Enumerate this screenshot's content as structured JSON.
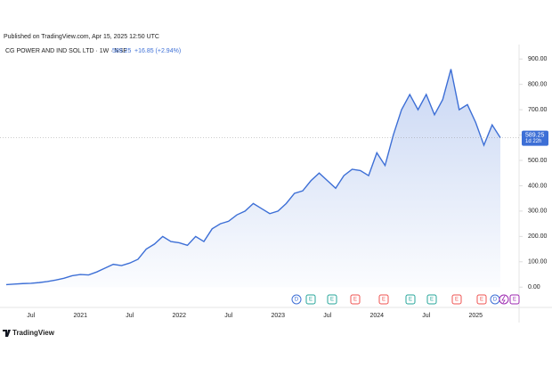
{
  "chart_data": {
    "type": "area",
    "published": "Published on TradingView.com, Apr 15, 2025 12:50 UTC",
    "symbol": "CG POWER AND IND SOL LTD · 1W · NSE",
    "last_price": 589.25,
    "change": "+16.85 (+2.94%)",
    "countdown": "1d 22h",
    "brand": "TradingView",
    "color": "#3d6fd6",
    "categories": [
      null,
      null,
      null,
      "Jul",
      null,
      null,
      null,
      null,
      null,
      "2021",
      null,
      null,
      null,
      null,
      null,
      "Jul",
      null,
      null,
      null,
      null,
      null,
      "2022",
      null,
      null,
      null,
      null,
      null,
      "Jul",
      null,
      null,
      null,
      null,
      null,
      "2023",
      null,
      null,
      null,
      null,
      null,
      "Jul",
      null,
      null,
      null,
      null,
      null,
      "2024",
      null,
      null,
      null,
      null,
      null,
      "Jul",
      null,
      null,
      null,
      null,
      null,
      "2025",
      null,
      null,
      null
    ],
    "values": [
      10,
      12,
      14,
      15,
      18,
      22,
      28,
      35,
      45,
      50,
      48,
      60,
      75,
      90,
      85,
      95,
      110,
      150,
      170,
      200,
      180,
      175,
      165,
      200,
      180,
      230,
      250,
      260,
      285,
      300,
      330,
      310,
      290,
      300,
      330,
      370,
      380,
      420,
      450,
      420,
      390,
      440,
      465,
      460,
      440,
      530,
      480,
      600,
      700,
      760,
      700,
      760,
      680,
      740,
      860,
      700,
      720,
      650,
      560,
      640,
      589.25
    ],
    "ylim": [
      -80,
      957
    ],
    "yticks": [
      {
        "value": 0,
        "label": "0.00"
      },
      {
        "value": 100,
        "label": "100.00"
      },
      {
        "value": 200,
        "label": "200.00"
      },
      {
        "value": 300,
        "label": "300.00"
      },
      {
        "value": 400,
        "label": "400.00"
      },
      {
        "value": 500,
        "label": "500.00"
      },
      {
        "value": 600,
        "label": "600.00"
      },
      {
        "value": 700,
        "label": "700.00"
      },
      {
        "value": 800,
        "label": "800.00"
      },
      {
        "value": 900,
        "label": "900.00"
      }
    ],
    "grid": false,
    "events": [
      "D",
      "E",
      "E",
      "E",
      "E",
      "E",
      "E",
      "E",
      "E",
      "D",
      "E"
    ]
  }
}
